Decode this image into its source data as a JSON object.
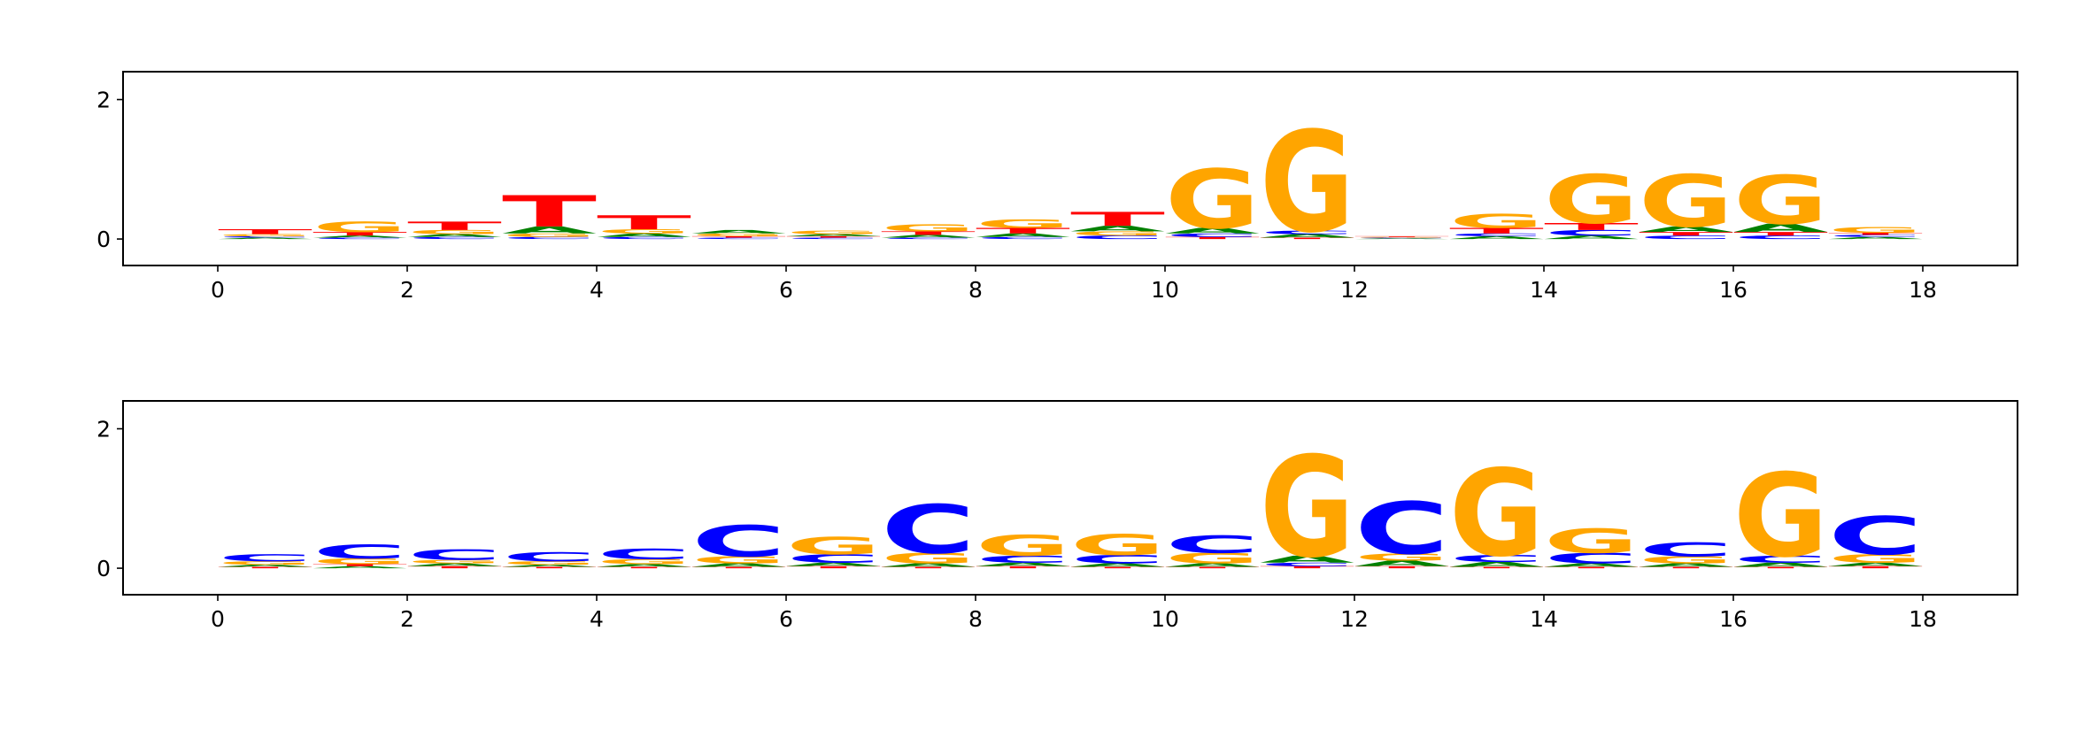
{
  "chart_data": [
    {
      "type": "logo",
      "xlim": [
        -1,
        19
      ],
      "xticks": [
        0,
        2,
        4,
        6,
        8,
        10,
        12,
        14,
        16,
        18
      ],
      "ylim": [
        -0.38,
        2.4
      ],
      "yticks": [
        0,
        2
      ],
      "series": [
        {
          "name": "A",
          "color": "#008000",
          "values": [
            0.02,
            0.03,
            0.04,
            0.1,
            0.05,
            0.05,
            0.03,
            0.04,
            0.05,
            0.08,
            0.08,
            0.05,
            0.01,
            0.04,
            0.05,
            0.08,
            0.12,
            0.03
          ]
        },
        {
          "name": "C",
          "color": "#0000ff",
          "values": [
            0.02,
            0.02,
            0.03,
            0.03,
            0.03,
            0.02,
            0.02,
            0.02,
            0.03,
            0.05,
            0.05,
            0.05,
            0.01,
            0.04,
            0.08,
            0.05,
            0.05,
            0.03
          ]
        },
        {
          "name": "G",
          "color": "#ffa500",
          "values": [
            0.03,
            0.15,
            0.06,
            0.05,
            0.06,
            0.04,
            0.05,
            0.1,
            0.12,
            0.06,
            0.85,
            1.45,
            0.01,
            0.2,
            0.7,
            0.75,
            0.7,
            0.08
          ]
        },
        {
          "name": "T",
          "color": "#ff0000",
          "values": [
            0.07,
            0.05,
            0.12,
            0.45,
            0.2,
            0.02,
            0.02,
            0.05,
            0.08,
            0.2,
            0.03,
            0.02,
            0.01,
            0.08,
            0.1,
            0.05,
            0.05,
            0.03
          ]
        }
      ]
    },
    {
      "type": "logo",
      "xlim": [
        -1,
        19
      ],
      "xticks": [
        0,
        2,
        4,
        6,
        8,
        10,
        12,
        14,
        16,
        18
      ],
      "ylim": [
        -0.38,
        2.4
      ],
      "yticks": [
        0,
        2
      ],
      "series": [
        {
          "name": "A",
          "color": "#008000",
          "values": [
            0.03,
            0.03,
            0.04,
            0.03,
            0.04,
            0.05,
            0.05,
            0.05,
            0.05,
            0.05,
            0.05,
            0.1,
            0.08,
            0.07,
            0.05,
            0.05,
            0.06,
            0.05
          ]
        },
        {
          "name": "C",
          "color": "#0000ff",
          "values": [
            0.1,
            0.2,
            0.15,
            0.13,
            0.15,
            0.45,
            0.12,
            0.7,
            0.1,
            0.12,
            0.25,
            0.05,
            0.75,
            0.1,
            0.15,
            0.2,
            0.1,
            0.55
          ]
        },
        {
          "name": "G",
          "color": "#ffa500",
          "values": [
            0.05,
            0.08,
            0.05,
            0.05,
            0.07,
            0.1,
            0.25,
            0.15,
            0.3,
            0.3,
            0.15,
            1.45,
            0.1,
            1.25,
            0.35,
            0.1,
            1.2,
            0.12
          ]
        },
        {
          "name": "T",
          "color": "#ff0000",
          "values": [
            0.02,
            0.03,
            0.03,
            0.02,
            0.02,
            0.02,
            0.03,
            0.02,
            0.03,
            0.02,
            0.02,
            0.03,
            0.03,
            0.02,
            0.02,
            0.02,
            0.02,
            0.03
          ]
        }
      ]
    }
  ]
}
